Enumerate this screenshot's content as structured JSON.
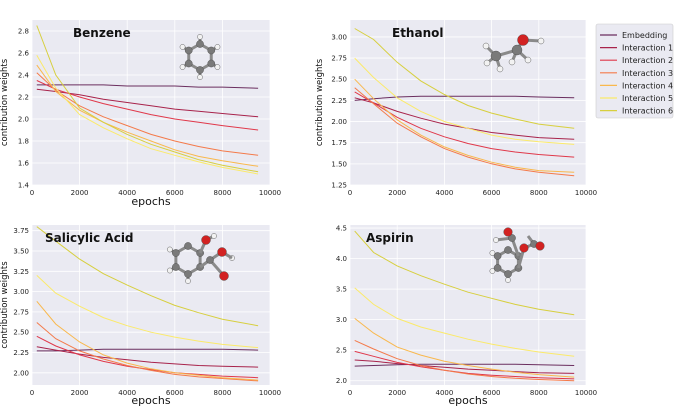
{
  "colors": {
    "plot_bg": "#eaeaf2",
    "grid": "#ffffff",
    "series": [
      "#6b2e5f",
      "#a8234b",
      "#e0384a",
      "#f47a4a",
      "#f9b84d",
      "#fbea6a",
      "#d7cf3e"
    ]
  },
  "legend": [
    "Embedding",
    "Interaction 1",
    "Interaction 2",
    "Interaction 3",
    "Interaction 4",
    "Interaction 5",
    "Interaction 6"
  ],
  "chart_data": [
    {
      "type": "line",
      "title": "Benzene",
      "xlabel": "epochs",
      "ylabel": "contribution weights",
      "xlim": [
        0,
        10000
      ],
      "ylim": [
        1.4,
        2.9
      ],
      "xticks": [
        0,
        2000,
        4000,
        6000,
        8000,
        10000
      ],
      "yticks": [
        1.4,
        1.6,
        1.8,
        2.0,
        2.2,
        2.4,
        2.6,
        2.8
      ],
      "ytick_labels": [
        "1.4",
        "1.6",
        "1.8",
        "2.0",
        "2.2",
        "2.4",
        "2.6",
        "2.8"
      ],
      "x": [
        200,
        1000,
        2000,
        3000,
        4000,
        5000,
        6000,
        7000,
        8000,
        9500
      ],
      "series": [
        {
          "name": "Embedding",
          "values": [
            2.31,
            2.31,
            2.31,
            2.31,
            2.3,
            2.3,
            2.3,
            2.29,
            2.29,
            2.28
          ]
        },
        {
          "name": "Interaction 1",
          "values": [
            2.27,
            2.25,
            2.22,
            2.18,
            2.15,
            2.12,
            2.09,
            2.07,
            2.05,
            2.02
          ]
        },
        {
          "name": "Interaction 2",
          "values": [
            2.35,
            2.27,
            2.2,
            2.14,
            2.09,
            2.04,
            2.0,
            1.97,
            1.94,
            1.9
          ]
        },
        {
          "name": "Interaction 3",
          "values": [
            2.42,
            2.26,
            2.12,
            2.02,
            1.94,
            1.86,
            1.8,
            1.75,
            1.71,
            1.67
          ]
        },
        {
          "name": "Interaction 4",
          "values": [
            2.49,
            2.25,
            2.08,
            1.97,
            1.88,
            1.8,
            1.72,
            1.66,
            1.62,
            1.57
          ]
        },
        {
          "name": "Interaction 5",
          "values": [
            2.58,
            2.28,
            2.04,
            1.92,
            1.82,
            1.73,
            1.67,
            1.61,
            1.56,
            1.5
          ]
        },
        {
          "name": "Interaction 6",
          "values": [
            2.85,
            2.4,
            2.1,
            1.97,
            1.86,
            1.77,
            1.7,
            1.63,
            1.58,
            1.52
          ]
        }
      ]
    },
    {
      "type": "line",
      "title": "Ethanol",
      "xlabel": "",
      "ylabel": "contribution weights",
      "xlim": [
        0,
        10000
      ],
      "ylim": [
        1.25,
        3.2
      ],
      "xticks": [
        0,
        2000,
        4000,
        6000,
        8000,
        10000
      ],
      "yticks": [
        1.25,
        1.5,
        1.75,
        2.0,
        2.25,
        2.5,
        2.75,
        3.0
      ],
      "ytick_labels": [
        "1.25",
        "1.50",
        "1.75",
        "2.00",
        "2.25",
        "2.50",
        "2.75",
        "3.00"
      ],
      "x": [
        200,
        1000,
        2000,
        3000,
        4000,
        5000,
        6000,
        7000,
        8000,
        9500
      ],
      "series": [
        {
          "name": "Embedding",
          "values": [
            2.25,
            2.27,
            2.29,
            2.3,
            2.3,
            2.3,
            2.3,
            2.3,
            2.29,
            2.28
          ]
        },
        {
          "name": "Interaction 1",
          "values": [
            2.28,
            2.22,
            2.12,
            2.04,
            1.97,
            1.92,
            1.87,
            1.84,
            1.81,
            1.79
          ]
        },
        {
          "name": "Interaction 2",
          "values": [
            2.35,
            2.22,
            2.05,
            1.92,
            1.82,
            1.74,
            1.68,
            1.64,
            1.61,
            1.58
          ]
        },
        {
          "name": "Interaction 3",
          "values": [
            2.4,
            2.21,
            1.98,
            1.82,
            1.68,
            1.58,
            1.5,
            1.44,
            1.4,
            1.36
          ]
        },
        {
          "name": "Interaction 4",
          "values": [
            2.5,
            2.27,
            2.02,
            1.84,
            1.7,
            1.6,
            1.52,
            1.46,
            1.42,
            1.4
          ]
        },
        {
          "name": "Interaction 5",
          "values": [
            2.75,
            2.52,
            2.28,
            2.12,
            2.0,
            1.92,
            1.84,
            1.79,
            1.76,
            1.73
          ]
        },
        {
          "name": "Interaction 6",
          "values": [
            3.1,
            2.97,
            2.7,
            2.48,
            2.32,
            2.19,
            2.1,
            2.03,
            1.97,
            1.92
          ]
        }
      ]
    },
    {
      "type": "line",
      "title": "Salicylic Acid",
      "xlabel": "epochs",
      "ylabel": "contribution weights",
      "xlim": [
        0,
        10000
      ],
      "ylim": [
        1.85,
        3.82
      ],
      "xticks": [
        0,
        2000,
        4000,
        6000,
        8000,
        10000
      ],
      "yticks": [
        2.0,
        2.25,
        2.5,
        2.75,
        3.0,
        3.25,
        3.5,
        3.75
      ],
      "ytick_labels": [
        "2.00",
        "2.25",
        "2.50",
        "2.75",
        "3.00",
        "3.25",
        "3.50",
        "3.75"
      ],
      "x": [
        200,
        1000,
        2000,
        3000,
        4000,
        5000,
        6000,
        7000,
        8000,
        9500
      ],
      "series": [
        {
          "name": "Embedding",
          "values": [
            2.27,
            2.27,
            2.28,
            2.29,
            2.29,
            2.29,
            2.29,
            2.29,
            2.29,
            2.28
          ]
        },
        {
          "name": "Interaction 1",
          "values": [
            2.32,
            2.28,
            2.23,
            2.19,
            2.16,
            2.13,
            2.11,
            2.09,
            2.08,
            2.07
          ]
        },
        {
          "name": "Interaction 2",
          "values": [
            2.45,
            2.33,
            2.22,
            2.14,
            2.08,
            2.04,
            2.0,
            1.98,
            1.96,
            1.94
          ]
        },
        {
          "name": "Interaction 3",
          "values": [
            2.62,
            2.42,
            2.27,
            2.17,
            2.09,
            2.03,
            1.98,
            1.95,
            1.93,
            1.9
          ]
        },
        {
          "name": "Interaction 4",
          "values": [
            2.88,
            2.6,
            2.38,
            2.22,
            2.12,
            2.05,
            2.0,
            1.97,
            1.94,
            1.91
          ]
        },
        {
          "name": "Interaction 5",
          "values": [
            3.2,
            2.98,
            2.82,
            2.68,
            2.58,
            2.5,
            2.44,
            2.39,
            2.35,
            2.31
          ]
        },
        {
          "name": "Interaction 6",
          "values": [
            3.8,
            3.62,
            3.4,
            3.22,
            3.08,
            2.95,
            2.83,
            2.74,
            2.66,
            2.58
          ]
        }
      ]
    },
    {
      "type": "line",
      "title": "Aspirin",
      "xlabel": "epochs",
      "ylabel": "",
      "xlim": [
        0,
        10000
      ],
      "ylim": [
        1.93,
        4.55
      ],
      "xticks": [
        0,
        2000,
        4000,
        6000,
        8000,
        10000
      ],
      "yticks": [
        2.0,
        2.5,
        3.0,
        3.5,
        4.0,
        4.5
      ],
      "ytick_labels": [
        "2.0",
        "2.5",
        "3.0",
        "3.5",
        "4.0",
        "4.5"
      ],
      "x": [
        200,
        1000,
        2000,
        3000,
        4000,
        5000,
        6000,
        7000,
        8000,
        9500
      ],
      "series": [
        {
          "name": "Embedding",
          "values": [
            2.24,
            2.25,
            2.26,
            2.27,
            2.27,
            2.27,
            2.27,
            2.27,
            2.26,
            2.25
          ]
        },
        {
          "name": "Interaction 1",
          "values": [
            2.34,
            2.32,
            2.28,
            2.25,
            2.22,
            2.19,
            2.17,
            2.15,
            2.13,
            2.12
          ]
        },
        {
          "name": "Interaction 2",
          "values": [
            2.48,
            2.4,
            2.3,
            2.23,
            2.17,
            2.12,
            2.09,
            2.07,
            2.05,
            2.03
          ]
        },
        {
          "name": "Interaction 3",
          "values": [
            2.66,
            2.52,
            2.36,
            2.25,
            2.17,
            2.11,
            2.07,
            2.04,
            2.02,
            2.0
          ]
        },
        {
          "name": "Interaction 4",
          "values": [
            3.02,
            2.78,
            2.55,
            2.42,
            2.32,
            2.25,
            2.19,
            2.14,
            2.1,
            2.06
          ]
        },
        {
          "name": "Interaction 5",
          "values": [
            3.52,
            3.25,
            3.02,
            2.88,
            2.78,
            2.68,
            2.6,
            2.53,
            2.47,
            2.4
          ]
        },
        {
          "name": "Interaction 6",
          "values": [
            4.45,
            4.1,
            3.88,
            3.72,
            3.58,
            3.45,
            3.35,
            3.25,
            3.17,
            3.08
          ]
        }
      ]
    }
  ]
}
